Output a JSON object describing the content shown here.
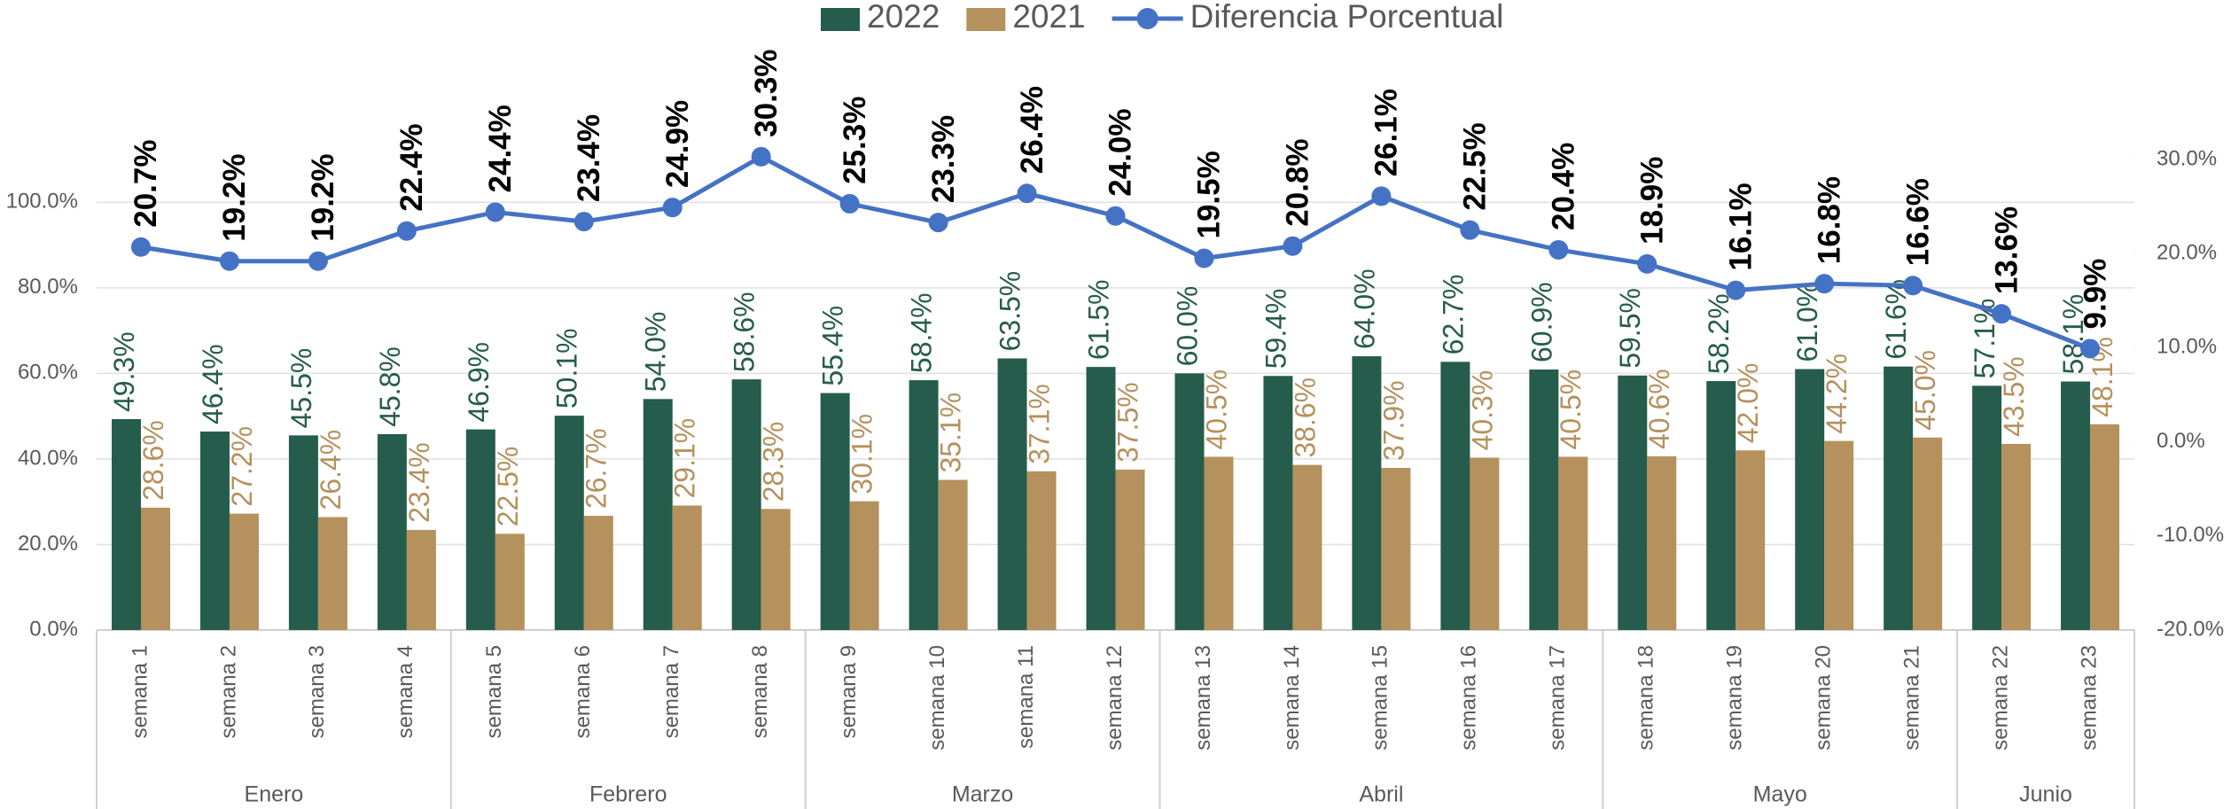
{
  "chart_data": {
    "type": "bar-line",
    "groups": [
      {
        "label": "Enero",
        "categories": [
          "semana 1",
          "semana 2",
          "semana 3",
          "semana 4"
        ]
      },
      {
        "label": "Febrero",
        "categories": [
          "semana 5",
          "semana 6",
          "semana 7",
          "semana 8"
        ]
      },
      {
        "label": "Marzo",
        "categories": [
          "semana 9",
          "semana 10",
          "semana 11",
          "semana 12"
        ]
      },
      {
        "label": "Abril",
        "categories": [
          "semana 13",
          "semana 14",
          "semana 15",
          "semana 16",
          "semana 17"
        ]
      },
      {
        "label": "Mayo",
        "categories": [
          "semana 18",
          "semana 19",
          "semana 20",
          "semana 21"
        ]
      },
      {
        "label": "Junio",
        "categories": [
          "semana 22",
          "semana 23"
        ]
      }
    ],
    "series": [
      {
        "name": "2022",
        "type": "bar",
        "color": "#265c4b",
        "values": [
          49.3,
          46.4,
          45.5,
          45.8,
          46.9,
          50.1,
          54.0,
          58.6,
          55.4,
          58.4,
          63.5,
          61.5,
          60.0,
          59.4,
          64.0,
          62.7,
          60.9,
          59.5,
          58.2,
          61.0,
          61.6,
          57.1,
          58.1
        ],
        "value_labels": [
          "49.3%",
          "46.4%",
          "45.5%",
          "45.8%",
          "46.9%",
          "50.1%",
          "54.0%",
          "58.6%",
          "55.4%",
          "58.4%",
          "63.5%",
          "61.5%",
          "60.0%",
          "59.4%",
          "64.0%",
          "62.7%",
          "60.9%",
          "59.5%",
          "58.2%",
          "61.0%",
          "61.6%",
          "57.1%",
          "58.1%"
        ]
      },
      {
        "name": "2021",
        "type": "bar",
        "color": "#b5915e",
        "values": [
          28.6,
          27.2,
          26.4,
          23.4,
          22.5,
          26.7,
          29.1,
          28.3,
          30.1,
          35.1,
          37.1,
          37.5,
          40.5,
          38.6,
          37.9,
          40.3,
          40.5,
          40.6,
          42.0,
          44.2,
          45.0,
          43.5,
          48.1
        ],
        "value_labels": [
          "28.6%",
          "27.2%",
          "26.4%",
          "23.4%",
          "22.5%",
          "26.7%",
          "29.1%",
          "28.3%",
          "30.1%",
          "35.1%",
          "37.1%",
          "37.5%",
          "40.5%",
          "38.6%",
          "37.9%",
          "40.3%",
          "40.5%",
          "40.6%",
          "42.0%",
          "44.2%",
          "45.0%",
          "43.5%",
          "48.1%"
        ]
      },
      {
        "name": "Diferencia Porcentual",
        "type": "line",
        "axis": "y2",
        "color": "#4472c4",
        "values": [
          20.7,
          19.2,
          19.2,
          22.4,
          24.4,
          23.4,
          24.9,
          30.3,
          25.3,
          23.3,
          26.4,
          24.0,
          19.5,
          20.8,
          26.1,
          22.5,
          20.4,
          18.9,
          16.1,
          16.8,
          16.6,
          13.6,
          9.9
        ],
        "value_labels": [
          "20.7%",
          "19.2%",
          "19.2%",
          "22.4%",
          "24.4%",
          "23.4%",
          "24.9%",
          "30.3%",
          "25.3%",
          "23.3%",
          "26.4%",
          "24.0%",
          "19.5%",
          "20.8%",
          "26.1%",
          "22.5%",
          "20.4%",
          "18.9%",
          "16.1%",
          "16.8%",
          "16.6%",
          "13.6%",
          "9.9%"
        ]
      }
    ],
    "ylim": [
      0,
      110
    ],
    "yticks": [
      {
        "value": 0,
        "label": "0.0%"
      },
      {
        "value": 20,
        "label": "20.0%"
      },
      {
        "value": 40,
        "label": "40.0%"
      },
      {
        "value": 60,
        "label": "60.0%"
      },
      {
        "value": 80,
        "label": "80.0%"
      },
      {
        "value": 100,
        "label": "100.0%"
      }
    ],
    "y2lim": [
      -20,
      30
    ],
    "y2ticks": [
      {
        "value": -20,
        "label": "-20.0%"
      },
      {
        "value": -10,
        "label": "-10.0%"
      },
      {
        "value": 0,
        "label": "0.0%"
      },
      {
        "value": 10,
        "label": "10.0%"
      },
      {
        "value": 20,
        "label": "20.0%"
      },
      {
        "value": 30,
        "label": "30.0%"
      }
    ],
    "grid": true
  }
}
